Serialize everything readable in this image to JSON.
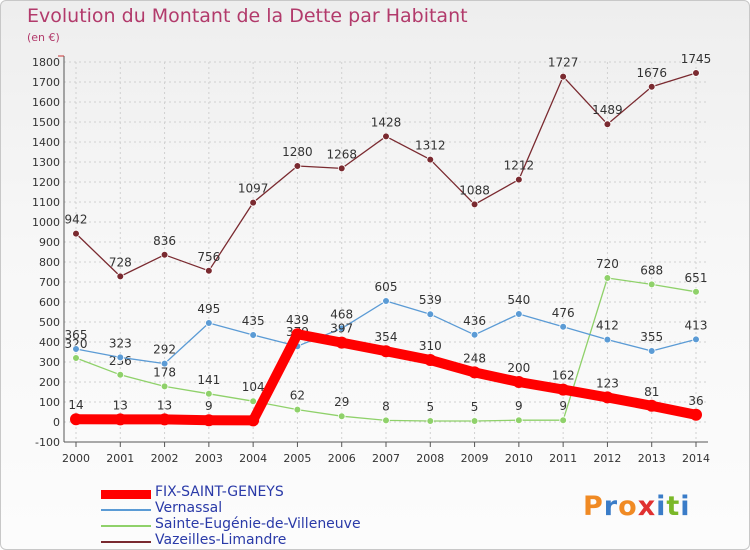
{
  "title": "Evolution du Montant de la Dette par Habitant",
  "unit": "(en €)",
  "logo": {
    "text": "Proxiti",
    "colors": [
      "#f08a24",
      "#3a7cc8",
      "#f08a24",
      "#e03030",
      "#3a7cc8",
      "#7ab828",
      "#3a7cc8"
    ]
  },
  "chart_data": {
    "type": "line",
    "x": [
      "2000",
      "2001",
      "2002",
      "2003",
      "2004",
      "2005",
      "2006",
      "2007",
      "2008",
      "2009",
      "2010",
      "2011",
      "2012",
      "2013",
      "2014"
    ],
    "ylim": [
      -100,
      1800
    ],
    "yticks": [
      "-100",
      "0",
      "100",
      "200",
      "300",
      "400",
      "500",
      "600",
      "700",
      "800",
      "900",
      "1000",
      "1100",
      "1200",
      "1300",
      "1400",
      "1500",
      "1600",
      "1700",
      "1800"
    ],
    "grid": true,
    "legend_position": "bottom-left",
    "series": [
      {
        "name": "FIX-SAINT-GENEYS",
        "color": "#ff0000",
        "values": [
          14,
          13,
          13,
          9,
          8,
          439,
          397,
          354,
          310,
          248,
          200,
          162,
          123,
          81,
          36
        ],
        "labels": [
          "14",
          "13",
          "13",
          "9",
          "",
          "439",
          "397",
          "354",
          "310",
          "248",
          "200",
          "162",
          "123",
          "81",
          "36"
        ]
      },
      {
        "name": "Vernassal",
        "color": "#5b9bd5",
        "values": [
          365,
          323,
          292,
          495,
          435,
          379,
          468,
          605,
          539,
          436,
          540,
          476,
          412,
          355,
          413
        ],
        "labels": [
          "365",
          "323",
          "292",
          "495",
          "435",
          "379",
          "468",
          "605",
          "539",
          "436",
          "540",
          "476",
          "412",
          "355",
          "413"
        ]
      },
      {
        "name": "Sainte-Eugénie-de-Villeneuve",
        "color": "#8fd16a",
        "values": [
          320,
          236,
          178,
          141,
          104,
          62,
          29,
          8,
          5,
          5,
          9,
          9,
          720,
          688,
          651
        ],
        "labels": [
          "320",
          "236",
          "178",
          "141",
          "104",
          "62",
          "29",
          "8",
          "5",
          "5",
          "9",
          "9",
          "720",
          "688",
          "651"
        ]
      },
      {
        "name": "Vazeilles-Limandre",
        "color": "#7a2a30",
        "values": [
          942,
          728,
          836,
          756,
          1097,
          1280,
          1268,
          1428,
          1312,
          1088,
          1212,
          1727,
          1489,
          1676,
          1745
        ],
        "labels": [
          "942",
          "728",
          "836",
          "756",
          "1097",
          "1280",
          "1268",
          "1428",
          "1312",
          "1088",
          "1212",
          "1727",
          "1489",
          "1676",
          "1745"
        ]
      }
    ]
  }
}
